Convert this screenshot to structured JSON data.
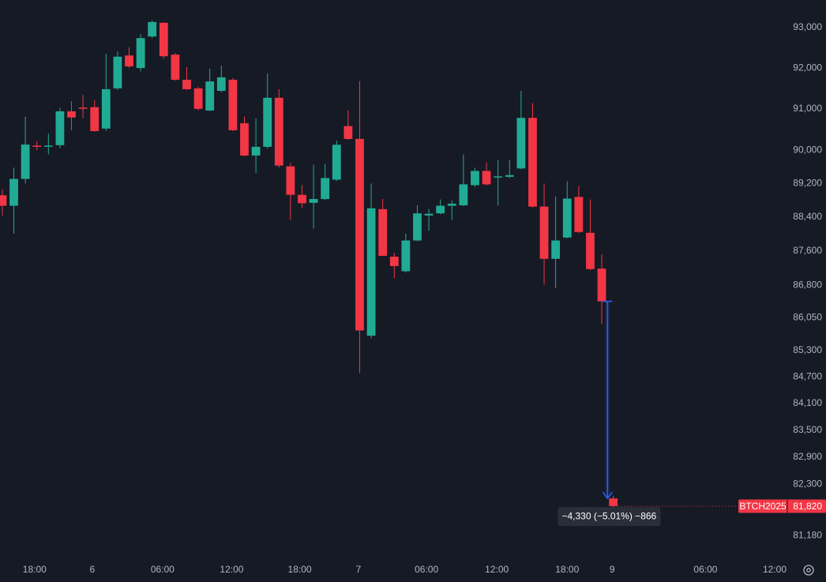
{
  "chart_data": {
    "type": "candlestick",
    "symbol": "BTCH2025",
    "open": [
      88920,
      88670,
      89310,
      90110,
      90090,
      90120,
      90940,
      91030,
      91040,
      90520,
      91500,
      92310,
      92000,
      92780,
      93120,
      92330,
      91710,
      91500,
      90960,
      91440,
      91710,
      90650,
      89870,
      90080,
      91270,
      89610,
      88930,
      88740,
      88830,
      89290,
      90580,
      90270,
      85640,
      88590,
      87470,
      87130,
      87850,
      88440,
      88490,
      88670,
      88680,
      89160,
      89500,
      89350,
      89360,
      89560,
      90780,
      88650,
      87420,
      87920,
      88880,
      88030,
      87190,
      81990
    ],
    "high": [
      89060,
      89580,
      90810,
      90220,
      90400,
      91020,
      91190,
      91340,
      91210,
      92350,
      92410,
      92510,
      92840,
      93180,
      93140,
      92370,
      92020,
      91540,
      91980,
      92060,
      91750,
      90810,
      90770,
      91870,
      91480,
      89690,
      89160,
      89650,
      89670,
      90230,
      90970,
      91680,
      89200,
      88830,
      87560,
      88010,
      88680,
      88590,
      88820,
      88800,
      89900,
      89580,
      89700,
      89760,
      89760,
      91440,
      91140,
      89200,
      88890,
      89250,
      89140,
      88820,
      87530,
      82050
    ],
    "low": [
      88440,
      88010,
      89200,
      90000,
      89900,
      90050,
      90480,
      90770,
      90440,
      90460,
      91460,
      92000,
      91920,
      92740,
      92230,
      91690,
      91460,
      90960,
      90940,
      91400,
      90460,
      89850,
      89450,
      90040,
      89580,
      88340,
      88620,
      88130,
      88800,
      89260,
      90250,
      84790,
      85580,
      87480,
      86970,
      87100,
      87830,
      88080,
      88470,
      88330,
      88660,
      89120,
      89150,
      88670,
      89330,
      89540,
      88630,
      86820,
      86740,
      87900,
      88030,
      87150,
      85910,
      81800
    ],
    "close": [
      88670,
      89310,
      90135,
      90090,
      90110,
      90940,
      90790,
      91010,
      90460,
      91480,
      92280,
      92040,
      92740,
      93140,
      92290,
      91710,
      91480,
      91000,
      91670,
      91770,
      90480,
      89870,
      90080,
      91270,
      89630,
      88930,
      88730,
      88830,
      89330,
      90130,
      90270,
      85760,
      88610,
      87490,
      87250,
      87850,
      88490,
      88480,
      88670,
      88720,
      89180,
      89500,
      89180,
      89370,
      89400,
      90780,
      88650,
      87420,
      87850,
      88840,
      88050,
      87180,
      86430,
      81820
    ],
    "up_color": "#22ab94",
    "down_color": "#f23645",
    "log_scale": true,
    "grid": false,
    "ylim": [
      80720,
      93690
    ],
    "yticks": [
      {
        "value": 93000,
        "label": "93,000"
      },
      {
        "value": 92000,
        "label": "92,000"
      },
      {
        "value": 91000,
        "label": "91,000"
      },
      {
        "value": 90000,
        "label": "90,000"
      },
      {
        "value": 89200,
        "label": "89,200"
      },
      {
        "value": 88400,
        "label": "88,400"
      },
      {
        "value": 87600,
        "label": "87,600"
      },
      {
        "value": 86800,
        "label": "86,800"
      },
      {
        "value": 86050,
        "label": "86,050"
      },
      {
        "value": 85300,
        "label": "85,300"
      },
      {
        "value": 84700,
        "label": "84,700"
      },
      {
        "value": 84100,
        "label": "84,100"
      },
      {
        "value": 83500,
        "label": "83,500"
      },
      {
        "value": 82900,
        "label": "82,900"
      },
      {
        "value": 82300,
        "label": "82,300"
      },
      {
        "value": 81180,
        "label": "81,180"
      }
    ],
    "xlim": [
      -0.2,
      68.3
    ],
    "xticks": [
      {
        "value": 2.8,
        "label": "18:00"
      },
      {
        "value": 7.8,
        "label": "6"
      },
      {
        "value": 13.9,
        "label": "06:00"
      },
      {
        "value": 19.9,
        "label": "12:00"
      },
      {
        "value": 25.8,
        "label": "18:00"
      },
      {
        "value": 30.9,
        "label": "7"
      },
      {
        "value": 36.8,
        "label": "06:00"
      },
      {
        "value": 42.9,
        "label": "12:00"
      },
      {
        "value": 49.0,
        "label": "18:00"
      },
      {
        "value": 52.9,
        "label": "9"
      },
      {
        "value": 61.0,
        "label": "06:00"
      },
      {
        "value": 67.0,
        "label": "12:00"
      }
    ],
    "last_price": {
      "value": 81820,
      "label": "81,820"
    },
    "measure_label": "−4,330 (−5.01%) −866"
  }
}
